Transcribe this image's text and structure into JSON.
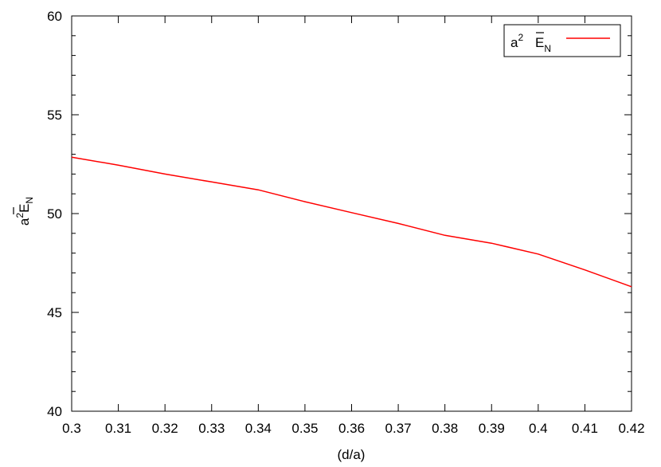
{
  "chart_data": {
    "type": "line",
    "xlabel": "(d/a)",
    "ylabel": {
      "base": "a",
      "sup": "2",
      "sym": "E",
      "sub": "N"
    },
    "xlim": [
      0.3,
      0.42
    ],
    "ylim": [
      40,
      60
    ],
    "x_ticks": [
      "0.3",
      "0.31",
      "0.32",
      "0.33",
      "0.34",
      "0.35",
      "0.36",
      "0.37",
      "0.38",
      "0.39",
      "0.4",
      "0.41",
      "0.42"
    ],
    "y_ticks": [
      "40",
      "45",
      "50",
      "55",
      "60"
    ],
    "grid": false,
    "legend_position": "top-right",
    "series": [
      {
        "name": {
          "base": "a",
          "sup": "2",
          "sym": "E",
          "sub": "N"
        },
        "color": "#ff0000",
        "x": [
          0.3,
          0.31,
          0.32,
          0.33,
          0.34,
          0.35,
          0.36,
          0.37,
          0.38,
          0.39,
          0.4,
          0.41,
          0.42
        ],
        "y": [
          52.85,
          52.45,
          52.0,
          51.6,
          51.2,
          50.6,
          50.05,
          49.5,
          48.9,
          48.5,
          47.95,
          47.15,
          46.3
        ]
      }
    ]
  }
}
